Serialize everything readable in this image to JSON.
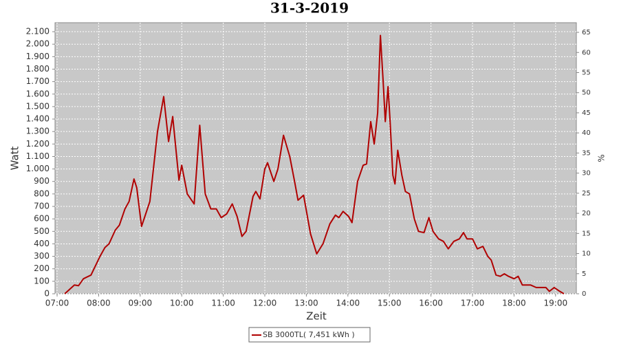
{
  "chart_data": {
    "type": "line",
    "title": "31-3-2019",
    "xlabel": "Zeit",
    "ylabel": "Watt",
    "y2label": "%",
    "x": [
      "07:11",
      "07:25",
      "07:31",
      "07:38",
      "07:49",
      "08:02",
      "08:09",
      "08:15",
      "08:24",
      "08:30",
      "08:38",
      "08:44",
      "08:51",
      "08:55",
      "09:02",
      "09:14",
      "09:25",
      "09:34",
      "09:41",
      "09:47",
      "09:56",
      "10:00",
      "10:08",
      "10:18",
      "10:26",
      "10:34",
      "10:42",
      "10:50",
      "10:57",
      "11:05",
      "11:13",
      "11:20",
      "11:27",
      "11:33",
      "11:43",
      "11:47",
      "11:53",
      "12:00",
      "12:04",
      "12:13",
      "12:19",
      "12:27",
      "12:36",
      "12:43",
      "12:48",
      "12:56",
      "13:06",
      "13:15",
      "13:24",
      "13:34",
      "13:42",
      "13:47",
      "13:53",
      "14:01",
      "14:06",
      "14:14",
      "14:22",
      "14:27",
      "14:33",
      "14:38",
      "14:43",
      "14:47",
      "14:51",
      "14:54",
      "14:58",
      "15:01",
      "15:05",
      "15:08",
      "15:12",
      "15:18",
      "15:23",
      "15:29",
      "15:36",
      "15:42",
      "15:50",
      "15:57",
      "16:03",
      "16:11",
      "16:18",
      "16:25",
      "16:33",
      "16:41",
      "16:47",
      "16:52",
      "17:00",
      "17:07",
      "17:15",
      "17:22",
      "17:27",
      "17:34",
      "17:40",
      "17:46",
      "17:52",
      "18:00",
      "18:06",
      "18:12",
      "18:24",
      "18:32",
      "18:46",
      "18:51",
      "18:58",
      "19:06",
      "19:12"
    ],
    "series": [
      {
        "name": "SB 3000TL( 7,451 kWh )",
        "color": "#b00000",
        "values": [
          0,
          70,
          65,
          120,
          150,
          300,
          370,
          400,
          510,
          550,
          680,
          740,
          920,
          850,
          540,
          740,
          1300,
          1580,
          1220,
          1420,
          910,
          1030,
          800,
          720,
          1350,
          800,
          680,
          680,
          610,
          640,
          720,
          620,
          460,
          500,
          780,
          820,
          760,
          1000,
          1050,
          900,
          1000,
          1270,
          1100,
          900,
          750,
          790,
          480,
          320,
          400,
          560,
          630,
          610,
          660,
          620,
          570,
          900,
          1030,
          1040,
          1380,
          1200,
          1450,
          2070,
          1700,
          1380,
          1660,
          1380,
          950,
          880,
          1150,
          950,
          820,
          800,
          600,
          500,
          490,
          610,
          500,
          440,
          420,
          360,
          420,
          440,
          490,
          440,
          440,
          360,
          380,
          300,
          270,
          150,
          140,
          160,
          140,
          120,
          140,
          70,
          70,
          50,
          50,
          20,
          50,
          20,
          0
        ]
      }
    ],
    "xlim": [
      "06:57",
      "19:30"
    ],
    "xticks": [
      "07:00",
      "08:00",
      "09:00",
      "10:00",
      "11:00",
      "12:00",
      "13:00",
      "14:00",
      "15:00",
      "16:00",
      "17:00",
      "18:00",
      "19:00"
    ],
    "ylim": [
      0,
      2172
    ],
    "yticks": [
      0,
      100,
      200,
      300,
      400,
      500,
      600,
      700,
      800,
      900,
      {
        "value": 1000,
        "label": "1.000"
      },
      {
        "value": 1100,
        "label": "1.100"
      },
      {
        "value": 1200,
        "label": "1.200"
      },
      {
        "value": 1300,
        "label": "1.300"
      },
      {
        "value": 1400,
        "label": "1.400"
      },
      {
        "value": 1500,
        "label": "1.500"
      },
      {
        "value": 1600,
        "label": "1.600"
      },
      {
        "value": 1700,
        "label": "1.700"
      },
      {
        "value": 1800,
        "label": "1.800"
      },
      {
        "value": 1900,
        "label": "1.900"
      },
      {
        "value": 2000,
        "label": "2.000"
      },
      {
        "value": 2100,
        "label": "2.100"
      }
    ],
    "y2lim": [
      0,
      67.4
    ],
    "y2ticks": [
      0,
      5,
      10,
      15,
      20,
      25,
      30,
      35,
      40,
      45,
      50,
      55,
      60,
      65
    ],
    "grid": true
  }
}
